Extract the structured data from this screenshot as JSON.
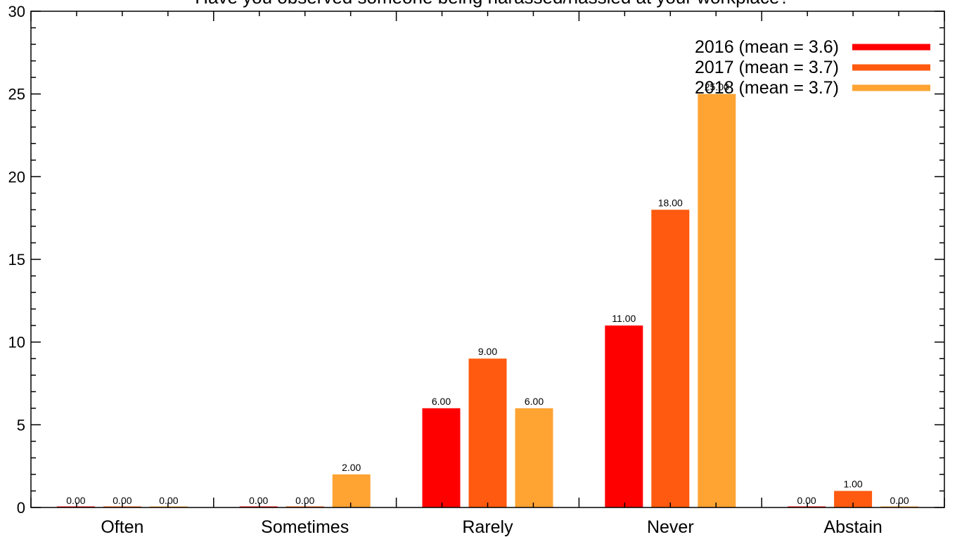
{
  "chart_data": {
    "type": "bar",
    "title": "Have you observed someone being harassed/hassled at your workplace?",
    "xlabel": "",
    "ylabel": "",
    "ylim": [
      0,
      30
    ],
    "yticks": [
      0,
      5,
      10,
      15,
      20,
      25,
      30
    ],
    "grid": false,
    "legend_position": "top-right",
    "categories": [
      "Often",
      "Sometimes",
      "Rarely",
      "Never",
      "Abstain"
    ],
    "series": [
      {
        "name": "2016 (mean = 3.6)",
        "color": "#ff0000",
        "values": [
          0,
          0,
          6,
          11,
          0
        ]
      },
      {
        "name": "2017 (mean = 3.7)",
        "color": "#ff5a0f",
        "values": [
          0,
          0,
          9,
          18,
          1
        ]
      },
      {
        "name": "2018 (mean = 3.7)",
        "color": "#ffa333",
        "values": [
          0,
          2,
          6,
          25,
          0
        ]
      }
    ],
    "value_labels": [
      [
        "0.00",
        "0.00",
        "6.00",
        "11.00",
        "0.00"
      ],
      [
        "0.00",
        "0.00",
        "9.00",
        "18.00",
        "1.00"
      ],
      [
        "0.00",
        "2.00",
        "6.00",
        "25.00",
        "0.00"
      ]
    ]
  }
}
